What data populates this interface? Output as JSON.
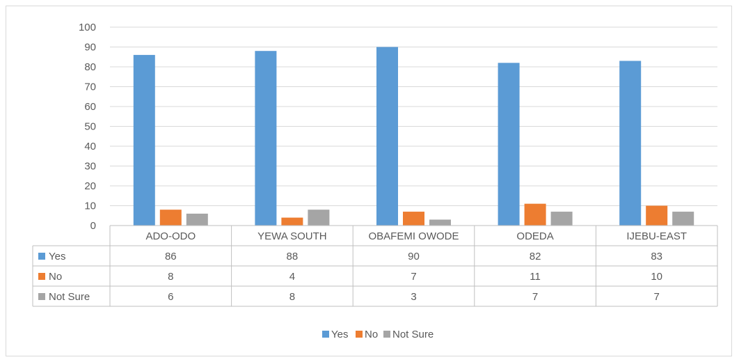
{
  "chart_data": {
    "type": "bar",
    "categories": [
      "ADO-ODO",
      "YEWA SOUTH",
      "OBAFEMI OWODE",
      "ODEDA",
      "IJEBU-EAST"
    ],
    "series": [
      {
        "name": "Yes",
        "values": [
          86,
          88,
          90,
          82,
          83
        ],
        "color": "#5b9bd5"
      },
      {
        "name": "No",
        "values": [
          8,
          4,
          7,
          11,
          10
        ],
        "color": "#ed7d31"
      },
      {
        "name": "Not Sure",
        "values": [
          6,
          8,
          3,
          7,
          7
        ],
        "color": "#a5a5a5"
      }
    ],
    "ylim": [
      0,
      100
    ],
    "yticks": [
      0,
      10,
      20,
      30,
      40,
      50,
      60,
      70,
      80,
      90,
      100
    ],
    "grid": true,
    "data_table": true,
    "legend_position": "bottom"
  }
}
